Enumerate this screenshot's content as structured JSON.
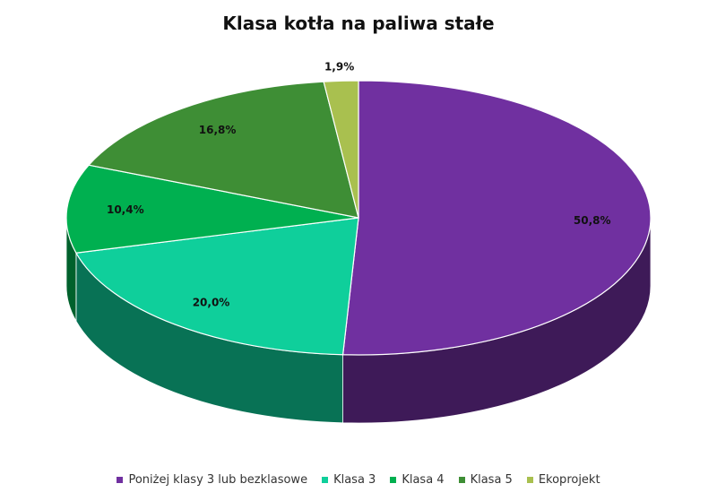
{
  "chart_data": {
    "type": "pie",
    "title": "Klasa kotła na paliwa stałe",
    "categories": [
      "Poniżej klasy 3 lub bezklasowe",
      "Klasa 3",
      "Klasa 4",
      "Klasa 5",
      "Ekoprojekt"
    ],
    "values": [
      50.8,
      20.0,
      10.4,
      16.8,
      1.9
    ],
    "value_labels": [
      "50,8%",
      "20,0%",
      "10,4%",
      "16,8%",
      "1,9%"
    ],
    "colors": [
      "#7030a0",
      "#0fcf9b",
      "#00b050",
      "#3e8e35",
      "#a9c04f"
    ]
  }
}
